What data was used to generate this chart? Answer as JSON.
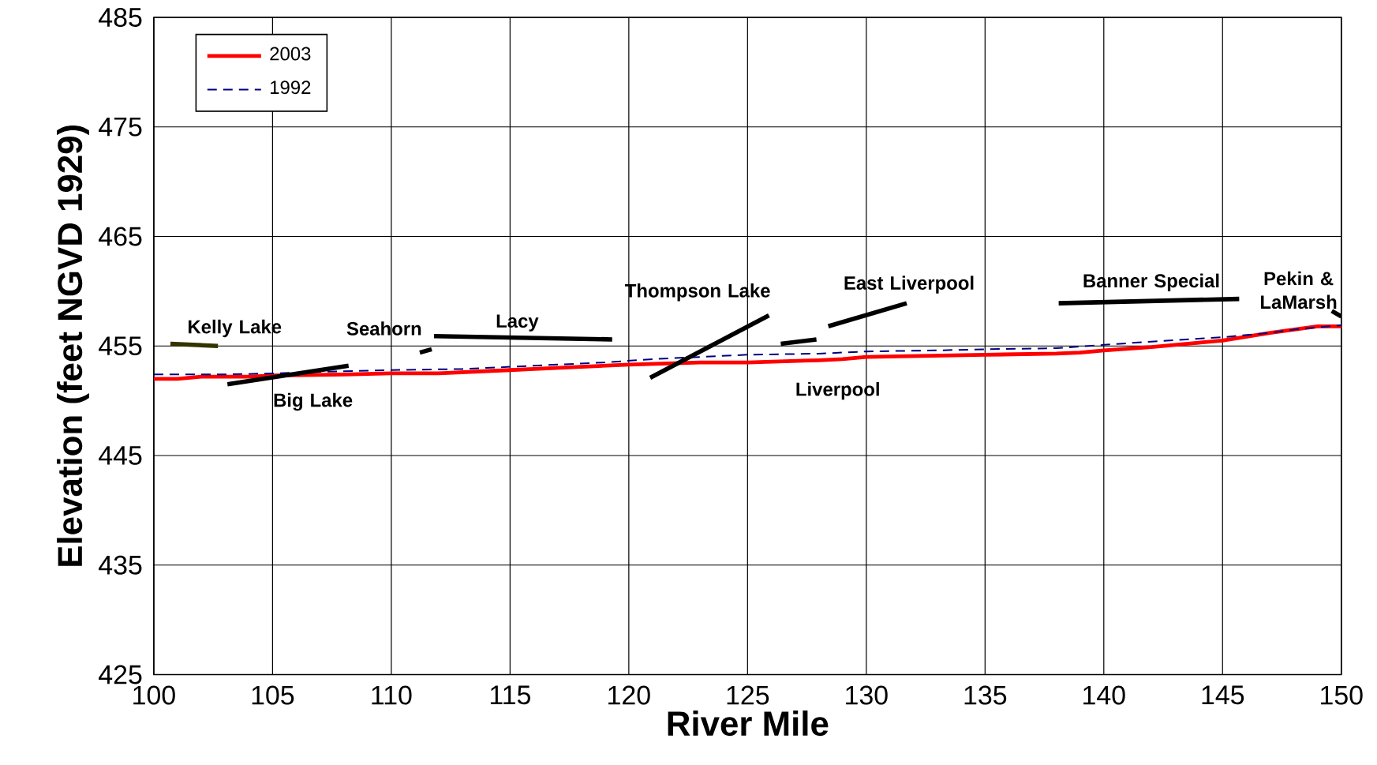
{
  "chart_data": {
    "type": "line",
    "xlabel": "River Mile",
    "ylabel": "Elevation (feet NGVD 1929)",
    "xlim": [
      100,
      150
    ],
    "ylim": [
      425,
      485
    ],
    "xticks": [
      100,
      105,
      110,
      115,
      120,
      125,
      130,
      135,
      140,
      145,
      150
    ],
    "yticks": [
      425,
      435,
      445,
      455,
      465,
      475,
      485
    ],
    "grid": true,
    "legend": "top left",
    "series": [
      {
        "name": "2003",
        "color": "#ff0000",
        "line_style": "solid",
        "x": [
          100,
          101,
          102,
          104,
          105,
          108,
          110,
          112,
          113,
          115,
          116,
          118,
          120,
          123,
          125,
          128,
          129,
          130,
          135,
          138,
          139,
          140,
          142,
          144,
          145,
          147,
          149,
          150
        ],
        "values": [
          452.0,
          452.0,
          452.2,
          452.2,
          452.3,
          452.4,
          452.5,
          452.5,
          452.6,
          452.8,
          452.9,
          453.1,
          453.3,
          453.5,
          453.5,
          453.7,
          453.8,
          454.0,
          454.2,
          454.3,
          454.4,
          454.6,
          454.9,
          455.3,
          455.5,
          456.2,
          456.8,
          456.8
        ]
      },
      {
        "name": "1992",
        "color": "#000080",
        "line_style": "dashed",
        "x": [
          100,
          103,
          105,
          108,
          110,
          113,
          115,
          117,
          119,
          121,
          123,
          125,
          128,
          130,
          133,
          135,
          138,
          140,
          142,
          145,
          147,
          148,
          150
        ],
        "values": [
          452.4,
          452.4,
          452.5,
          452.7,
          452.8,
          452.9,
          453.1,
          453.3,
          453.5,
          453.8,
          454.0,
          454.2,
          454.3,
          454.5,
          454.6,
          454.7,
          454.8,
          455.1,
          455.4,
          455.8,
          456.2,
          456.5,
          456.9
        ]
      },
      {
        "color": "#333300",
        "line_style": "solid",
        "x": [
          100.7,
          102.7
        ],
        "values": [
          455.2,
          455.0
        ]
      },
      {
        "color": "#000000",
        "line_style": "solid",
        "x": [
          103.1,
          108.2
        ],
        "values": [
          451.5,
          453.2
        ]
      },
      {
        "color": "#000000",
        "line_style": "solid",
        "x": [
          111.2,
          111.7
        ],
        "values": [
          454.4,
          454.7
        ]
      },
      {
        "color": "#000000",
        "line_style": "solid",
        "x": [
          111.8,
          119.3
        ],
        "values": [
          455.9,
          455.6
        ]
      },
      {
        "color": "#000000",
        "line_style": "solid",
        "x": [
          120.9,
          125.9
        ],
        "values": [
          452.1,
          457.8
        ]
      },
      {
        "color": "#000000",
        "line_style": "solid",
        "x": [
          126.4,
          127.9
        ],
        "values": [
          455.2,
          455.6
        ]
      },
      {
        "color": "#000000",
        "line_style": "solid",
        "x": [
          128.4,
          131.7
        ],
        "values": [
          456.8,
          458.9
        ]
      },
      {
        "color": "#000000",
        "line_style": "solid",
        "x": [
          138.1,
          145.7
        ],
        "values": [
          458.9,
          459.3
        ]
      },
      {
        "color": "#000000",
        "line_style": "solid",
        "x": [
          149.6,
          150.0
        ],
        "values": [
          458.2,
          457.7
        ]
      }
    ],
    "annotations": [
      "Kelly Lake",
      "Big Lake",
      "Seahorn",
      "Lacy",
      "Thompson Lake",
      "Liverpool",
      "East Liverpool",
      "Banner Special",
      "Pekin & LaMarsh"
    ]
  }
}
